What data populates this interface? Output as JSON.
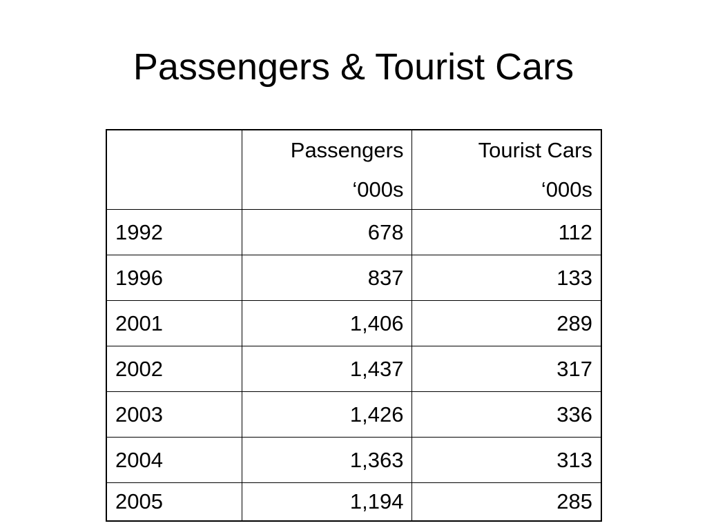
{
  "title": "Passengers & Tourist Cars",
  "table": {
    "columns": [
      {
        "name": "Passengers",
        "unit": "‘000s"
      },
      {
        "name": "Tourist Cars",
        "unit": "‘000s"
      }
    ],
    "rows": [
      [
        "1992",
        "678",
        "112"
      ],
      [
        "1996",
        "837",
        "133"
      ],
      [
        "2001",
        "1,406",
        "289"
      ],
      [
        "2002",
        "1,437",
        "317"
      ],
      [
        "2003",
        "1,426",
        "336"
      ],
      [
        "2004",
        "1,363",
        "313"
      ],
      [
        "2005",
        "1,194",
        "285"
      ]
    ]
  }
}
